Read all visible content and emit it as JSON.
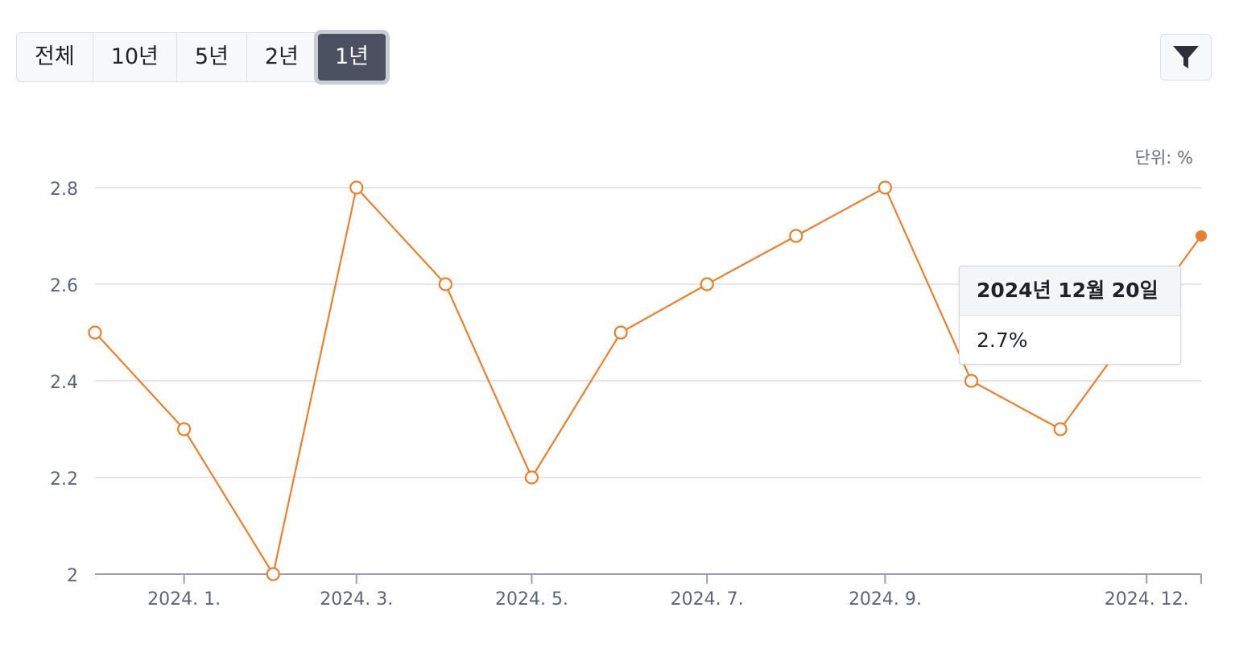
{
  "range_tabs": [
    {
      "label": "전체",
      "active": false
    },
    {
      "label": "10년",
      "active": false
    },
    {
      "label": "5년",
      "active": false
    },
    {
      "label": "2년",
      "active": false
    },
    {
      "label": "1년",
      "active": true
    }
  ],
  "filter_icon": "filter-funnel-icon",
  "unit_label": "단위: %",
  "tooltip": {
    "title": "2024년 12월 20일",
    "value": "2.7%"
  },
  "colors": {
    "line": "#e8802f",
    "grid": "#e3e5e8",
    "axis": "#9aa0a8",
    "tick_text": "#5f6570",
    "active_tab": "#4b5160"
  },
  "chart_data": {
    "type": "line",
    "title": "",
    "xlabel": "",
    "ylabel": "",
    "unit": "%",
    "ylim": [
      2,
      2.8
    ],
    "yticks": [
      2,
      2.2,
      2.4,
      2.6,
      2.8
    ],
    "ytick_labels": [
      "2",
      "2.2",
      "2.4",
      "2.6",
      "2.8"
    ],
    "xlim": [
      "2023-12-01",
      "2024-12-20"
    ],
    "xticks": [
      {
        "date": "2024-01-01",
        "label": "2024. 1."
      },
      {
        "date": "2024-03-01",
        "label": "2024. 3."
      },
      {
        "date": "2024-05-01",
        "label": "2024. 5."
      },
      {
        "date": "2024-07-01",
        "label": "2024. 7."
      },
      {
        "date": "2024-09-01",
        "label": "2024. 9."
      },
      {
        "date": "2024-12-01",
        "label": "2024. 12."
      }
    ],
    "series": [
      {
        "points": [
          {
            "x": "2023-12-01",
            "y": 2.5
          },
          {
            "x": "2024-01-01",
            "y": 2.3
          },
          {
            "x": "2024-02-01",
            "y": 2.0
          },
          {
            "x": "2024-03-01",
            "y": 2.8
          },
          {
            "x": "2024-04-01",
            "y": 2.6
          },
          {
            "x": "2024-05-01",
            "y": 2.2
          },
          {
            "x": "2024-06-01",
            "y": 2.5
          },
          {
            "x": "2024-07-01",
            "y": 2.6
          },
          {
            "x": "2024-08-01",
            "y": 2.7
          },
          {
            "x": "2024-09-01",
            "y": 2.8
          },
          {
            "x": "2024-10-01",
            "y": 2.4
          },
          {
            "x": "2024-11-01",
            "y": 2.3
          },
          {
            "x": "2024-12-20",
            "y": 2.7
          }
        ],
        "highlighted": "2024-12-20"
      }
    ],
    "grid": true,
    "legend": "none"
  }
}
